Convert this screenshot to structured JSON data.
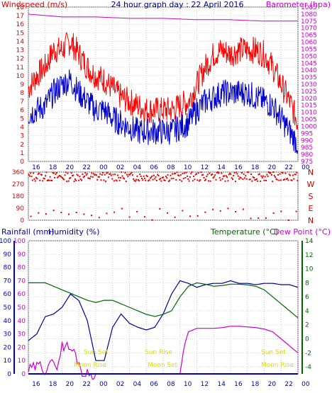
{
  "chart_data": [
    {
      "type": "line",
      "title": "24 hour graph day : 22 April 2016",
      "left_axis_label": "Windspeed (m/s)",
      "right_axis_label": "Barometer (hpa)",
      "x_ticks": [
        "16",
        "18",
        "20",
        "22",
        "00",
        "02",
        "04",
        "06",
        "08",
        "10",
        "12",
        "14",
        "16",
        "18",
        "20",
        "22",
        "00"
      ],
      "left_axis": {
        "range": [
          0,
          18
        ],
        "ticks": [
          "0",
          "1",
          "2",
          "3",
          "4",
          "5",
          "6",
          "7",
          "8",
          "9",
          "10",
          "11",
          "12",
          "13",
          "14",
          "15",
          "16",
          "17",
          "18"
        ],
        "color": "#dd0000"
      },
      "right_axis": {
        "range": [
          975,
          1085
        ],
        "ticks": [
          "975",
          "980",
          "985",
          "990",
          "995",
          "1000",
          "1005",
          "1010",
          "1015",
          "1020",
          "1025",
          "1030",
          "1035",
          "1040",
          "1045",
          "1050",
          "1055",
          "1060",
          "1065",
          "1070",
          "1075",
          "1080",
          "1085"
        ],
        "color": "#cc00cc"
      },
      "grid": true,
      "series": [
        {
          "key": "gust",
          "color": "#ff0000",
          "x_hours": [
            0,
            1,
            2,
            3,
            4,
            5,
            6,
            7,
            8,
            9,
            10,
            11,
            12,
            13,
            14,
            15,
            16,
            17,
            18,
            19,
            20,
            21,
            22,
            23,
            24,
            25,
            26,
            27,
            28,
            29,
            30,
            31,
            32
          ],
          "values": [
            8.5,
            10,
            11,
            13,
            13,
            14,
            12.5,
            11,
            10,
            9.5,
            8.5,
            7.5,
            7,
            6.5,
            6,
            6,
            6,
            6,
            6.5,
            7,
            9,
            11,
            12.5,
            13,
            12.5,
            13,
            13,
            13,
            12.5,
            11,
            9,
            7,
            4.5
          ]
        },
        {
          "key": "wind",
          "color": "#0000cc",
          "x_hours": [
            0,
            1,
            2,
            3,
            4,
            5,
            6,
            7,
            8,
            9,
            10,
            11,
            12,
            13,
            14,
            15,
            16,
            17,
            18,
            19,
            20,
            21,
            22,
            23,
            24,
            25,
            26,
            27,
            28,
            29,
            30,
            31,
            32
          ],
          "values": [
            5.5,
            6,
            6.5,
            8,
            9,
            9.5,
            8,
            7,
            6,
            6,
            5,
            4.5,
            4,
            3.5,
            3.5,
            3.5,
            3.5,
            3.5,
            4,
            4.5,
            6,
            7,
            7.5,
            8,
            8,
            8,
            8,
            7.5,
            7,
            6.5,
            5,
            3.5,
            2
          ]
        },
        {
          "key": "barometer",
          "color": "#cc00cc",
          "x_hours": [
            0,
            4,
            8,
            12,
            16,
            20,
            24,
            28,
            32
          ],
          "values": [
            1080,
            1078,
            1078,
            1077,
            1077,
            1076,
            1076,
            1075,
            1075
          ]
        }
      ]
    },
    {
      "type": "scatter",
      "left_axis": {
        "range": [
          0,
          360
        ],
        "ticks": [
          "0",
          "90",
          "180",
          "270",
          "360"
        ],
        "color": "#dd0000"
      },
      "right_labels": [
        "N",
        "W",
        "S",
        "E",
        "N"
      ],
      "grid": true,
      "series": [
        {
          "key": "wind_direction",
          "color": "#ee0000",
          "main_band": [
            290,
            360
          ],
          "sparse_band": [
            0,
            90
          ]
        }
      ]
    },
    {
      "type": "line",
      "left_axis_labels": [
        "Rainfall (mm)",
        "Humidity (%)"
      ],
      "right_axis_labels": [
        "Temperature (°C)",
        "Dew Point (°C)"
      ],
      "x_ticks": [
        "16",
        "18",
        "20",
        "22",
        "00",
        "02",
        "04",
        "06",
        "08",
        "10",
        "12",
        "14",
        "16",
        "18",
        "20",
        "22",
        "00"
      ],
      "rain_axis": {
        "range": [
          0,
          100
        ],
        "ticks": [
          "0",
          "10",
          "20",
          "30",
          "40",
          "50",
          "60",
          "70",
          "80",
          "90",
          "100"
        ],
        "color": "#0000cc"
      },
      "humidity_axis": {
        "range": [
          0,
          100
        ],
        "ticks": [
          "0",
          "10",
          "20",
          "30",
          "40",
          "50",
          "60",
          "70",
          "80",
          "90",
          "100"
        ],
        "color": "#cc00cc"
      },
      "temp_axis": {
        "range": [
          -5,
          14
        ],
        "ticks": [
          "-4",
          "-2",
          "0",
          "2",
          "4",
          "6",
          "8",
          "10",
          "12",
          "14"
        ],
        "color": "#006600"
      },
      "annotations": [
        {
          "text": "Sun Set",
          "x_hour": 22
        },
        {
          "text": "Moon Rise",
          "x_hour": 22
        },
        {
          "text": "Sun Rise",
          "x_hour": 10
        },
        {
          "text": "Moon Set",
          "x_hour": 11
        },
        {
          "text": "Sun Set",
          "x_hour": 30
        },
        {
          "text": "Moon Rise",
          "x_hour": 30
        }
      ],
      "grid": true,
      "series": [
        {
          "key": "humidity",
          "axis": "humidity",
          "color": "#000099",
          "x_hours": [
            0,
            1,
            2,
            3,
            4,
            5,
            6,
            7,
            8,
            9,
            10,
            11,
            12,
            13,
            14,
            15,
            16,
            17,
            18,
            19,
            20,
            21,
            22,
            23,
            24,
            25,
            26,
            27,
            28,
            29,
            30,
            31,
            32
          ],
          "values": [
            25,
            30,
            43,
            45,
            50,
            60,
            55,
            40,
            10,
            10,
            35,
            45,
            38,
            35,
            33,
            35,
            45,
            60,
            70,
            68,
            65,
            67,
            68,
            68,
            70,
            68,
            68,
            67,
            68,
            68,
            67,
            67,
            65
          ]
        },
        {
          "key": "temperature",
          "axis": "temp",
          "color": "#006600",
          "x_hours": [
            0,
            1,
            2,
            3,
            4,
            5,
            6,
            7,
            8,
            9,
            10,
            11,
            12,
            13,
            14,
            15,
            16,
            17,
            18,
            19,
            20,
            21,
            22,
            23,
            24,
            25,
            26,
            27,
            28,
            29,
            30,
            31,
            32
          ],
          "values": [
            8,
            8,
            8,
            7.5,
            7,
            6.5,
            6,
            5.5,
            5.2,
            5.5,
            5.5,
            5,
            4.5,
            4,
            3.5,
            3.2,
            3.5,
            4,
            6,
            7.5,
            8,
            7.8,
            7.5,
            7.6,
            7.8,
            7.8,
            7.7,
            7.5,
            7,
            6,
            5,
            4,
            3
          ]
        },
        {
          "key": "dew_point",
          "axis": "temp",
          "color": "#cc00cc",
          "x_hours": [
            0,
            0.5,
            1,
            1.5,
            2,
            2.5,
            3,
            3.5,
            4,
            4.5,
            5,
            5.5,
            6,
            6.5,
            7,
            7.5,
            8,
            16,
            17,
            18,
            18.5,
            19,
            20,
            21,
            22,
            23,
            24,
            25,
            26,
            27,
            28,
            29,
            30,
            31,
            32
          ],
          "values": [
            -4.5,
            -4.2,
            -4,
            -3.8,
            -4.5,
            -3,
            -4,
            -3.5,
            -1,
            -1,
            -1.5,
            -2,
            -3.5,
            -5,
            -5,
            -5,
            -5,
            -5,
            -5,
            -5,
            -1,
            1,
            1.5,
            1.5,
            1.5,
            1.6,
            1.8,
            1.8,
            1.7,
            1.6,
            1.4,
            1,
            0,
            -1,
            -2
          ]
        },
        {
          "key": "rainfall",
          "axis": "rain",
          "color": "#0000cc",
          "x_hours": [
            0,
            32
          ],
          "values": [
            0,
            0
          ]
        }
      ]
    }
  ]
}
